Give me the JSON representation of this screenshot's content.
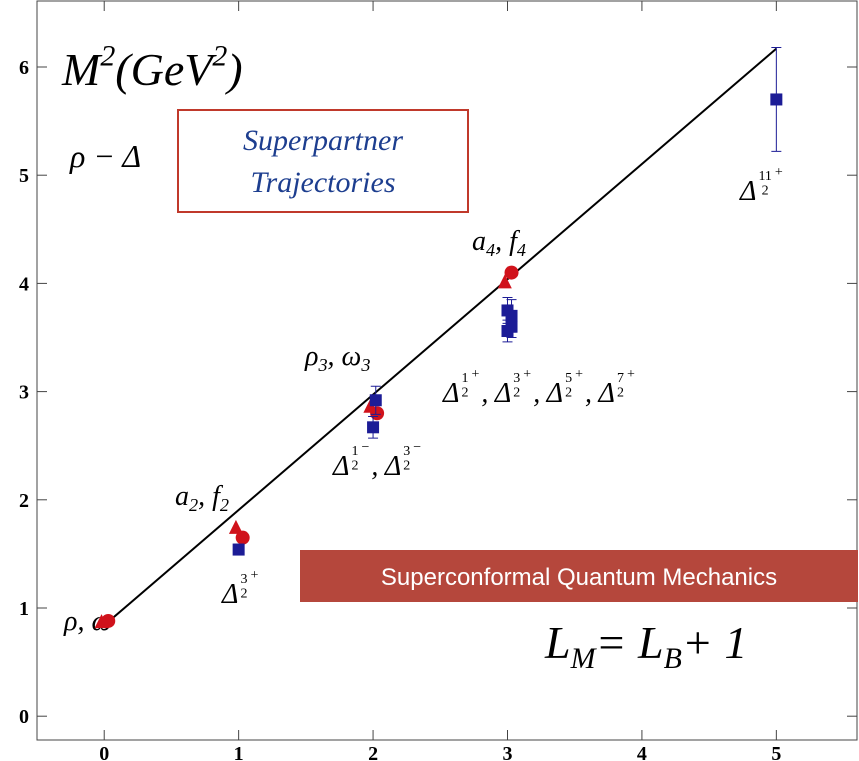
{
  "chart_data": {
    "type": "scatter",
    "title_runs": [
      {
        "t": "M"
      },
      {
        "t": "2",
        "sup": true
      },
      {
        "t": " (GeV"
      },
      {
        "t": "2",
        "sup": true
      },
      {
        "t": ")"
      }
    ],
    "xlim": [
      -0.5,
      5.6
    ],
    "ylim": [
      -0.22,
      6.61
    ],
    "xticks": [
      0,
      1,
      2,
      3,
      4,
      5
    ],
    "yticks": [
      0,
      1,
      2,
      3,
      4,
      5,
      6
    ],
    "series": [
      {
        "marker": "line",
        "color": "#000000",
        "x": [
          0,
          5
        ],
        "values": [
          0.84,
          6.17
        ]
      },
      {
        "marker": "triangle",
        "color": "#d0121b",
        "x": [
          -0.02,
          0.98,
          1.98,
          2.98
        ],
        "values": [
          0.87,
          1.74,
          2.86,
          4.01
        ]
      },
      {
        "marker": "circle",
        "color": "#d0121b",
        "x": [
          0.03,
          1.03,
          2.03,
          3.03
        ],
        "values": [
          0.88,
          1.65,
          2.8,
          4.1
        ]
      },
      {
        "marker": "square",
        "color": "#1c1c96",
        "x": [
          1,
          2,
          2.02,
          3,
          3,
          3.03,
          3.03,
          5
        ],
        "values": [
          1.54,
          2.67,
          2.92,
          3.56,
          3.75,
          3.6,
          3.7,
          5.7
        ],
        "errors": [
          0.05,
          0.1,
          0.13,
          0.1,
          0.12,
          0.1,
          0.15,
          0.48
        ]
      }
    ],
    "annotations": [
      [
        {
          "t": "ρ, ω"
        }
      ],
      [
        {
          "t": "a"
        },
        {
          "t": "2",
          "sub": true
        },
        {
          "t": ", f"
        },
        {
          "t": "2",
          "sub": true
        }
      ],
      [
        {
          "t": "ρ"
        },
        {
          "t": "3",
          "sub": true
        },
        {
          "t": ", ω"
        },
        {
          "t": "3",
          "sub": true
        }
      ],
      [
        {
          "t": "a"
        },
        {
          "t": "4",
          "sub": true
        },
        {
          "t": ", f"
        },
        {
          "t": "4",
          "sub": true
        }
      ],
      [
        {
          "t": "Δ"
        },
        {
          "num": "3",
          "den": "2",
          "sign": "+"
        }
      ],
      [
        {
          "t": "Δ"
        },
        {
          "num": "1",
          "den": "2",
          "sign": "−"
        },
        {
          "t": ", Δ"
        },
        {
          "num": "3",
          "den": "2",
          "sign": "−"
        }
      ],
      [
        {
          "t": "Δ"
        },
        {
          "num": "1",
          "den": "2",
          "sign": "+"
        },
        {
          "t": ", Δ"
        },
        {
          "num": "3",
          "den": "2",
          "sign": "+"
        },
        {
          "t": ", Δ"
        },
        {
          "num": "5",
          "den": "2",
          "sign": "+"
        },
        {
          "t": ", Δ"
        },
        {
          "num": "7",
          "den": "2",
          "sign": "+"
        }
      ],
      [
        {
          "t": "Δ"
        },
        {
          "num": "11",
          "den": "2",
          "sign": "+"
        }
      ],
      [
        {
          "t": "ρ − Δ"
        }
      ],
      [
        {
          "t": "L"
        },
        {
          "t": "M",
          "sub": true
        },
        {
          "t": " = L"
        },
        {
          "t": "B",
          "sub": true
        },
        {
          "t": " + 1"
        }
      ]
    ],
    "box_text": [
      "Superpartner",
      "Trajectories"
    ],
    "banner": "Superconformal Quantum Mechanics"
  }
}
